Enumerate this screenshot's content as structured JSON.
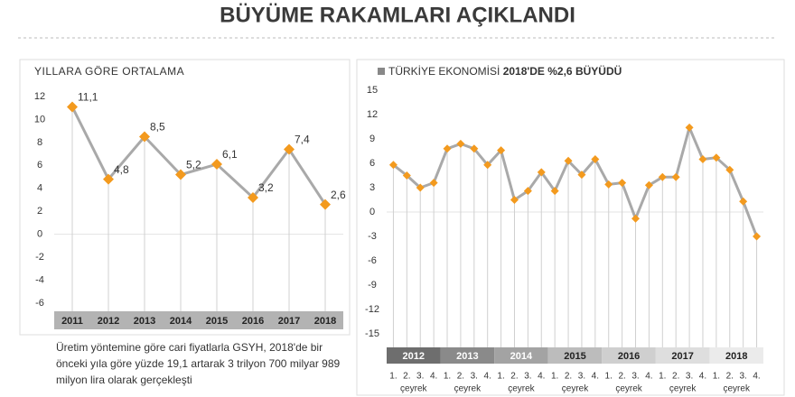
{
  "title": "BÜYÜME RAKAMLARI AÇIKLANDI",
  "caption": "Üretim yöntemine göre cari fiyatlarla GSYH, 2018'de bir önceki yıla göre yüzde 19,1 artarak 3 trilyon 700 milyar 989 milyon lira olarak gerçekleşti",
  "chart_data": [
    {
      "type": "line",
      "title": "YILLARA GÖRE ORTALAMA",
      "categories": [
        "2011",
        "2012",
        "2013",
        "2014",
        "2015",
        "2016",
        "2017",
        "2018"
      ],
      "values": [
        11.1,
        4.8,
        8.5,
        5.2,
        6.1,
        3.2,
        7.4,
        2.6
      ],
      "value_labels": [
        "11,1",
        "4,8",
        "8,5",
        "5,2",
        "6,1",
        "3,2",
        "7,4",
        "2,6"
      ],
      "ylim": [
        -6,
        12
      ],
      "yticks": [
        12,
        10,
        8,
        6,
        4,
        2,
        0,
        -2,
        -4,
        -6
      ],
      "line_color": "#a9a9a9",
      "marker_color": "#f39a1e"
    },
    {
      "type": "line",
      "title": "TÜRKİYE EKONOMİSİ",
      "subtitle": "2018'DE %2,6 BÜYÜDÜ",
      "groups": [
        "2012",
        "2013",
        "2014",
        "2015",
        "2016",
        "2017",
        "2018"
      ],
      "group_sublabel": "çeyrek",
      "categories": [
        "1.",
        "2.",
        "3.",
        "4.",
        "1.",
        "2.",
        "3.",
        "4.",
        "1.",
        "2.",
        "3.",
        "4.",
        "1.",
        "2.",
        "3.",
        "4.",
        "1.",
        "2.",
        "3.",
        "4.",
        "1.",
        "2.",
        "3.",
        "4.",
        "1.",
        "2.",
        "3.",
        "4."
      ],
      "values": [
        5.8,
        4.5,
        3.0,
        3.6,
        7.8,
        8.4,
        7.8,
        5.8,
        7.6,
        1.5,
        2.6,
        4.9,
        2.6,
        6.3,
        4.6,
        6.5,
        3.4,
        3.6,
        -0.8,
        3.3,
        4.3,
        4.3,
        10.4,
        6.5,
        6.7,
        5.2,
        1.3,
        -3.0
      ],
      "ylim": [
        -15,
        15
      ],
      "yticks": [
        15,
        12,
        9,
        6,
        3,
        0,
        -3,
        -6,
        -9,
        -12,
        -15
      ],
      "line_color": "#a9a9a9",
      "marker_color": "#f39a1e"
    }
  ]
}
